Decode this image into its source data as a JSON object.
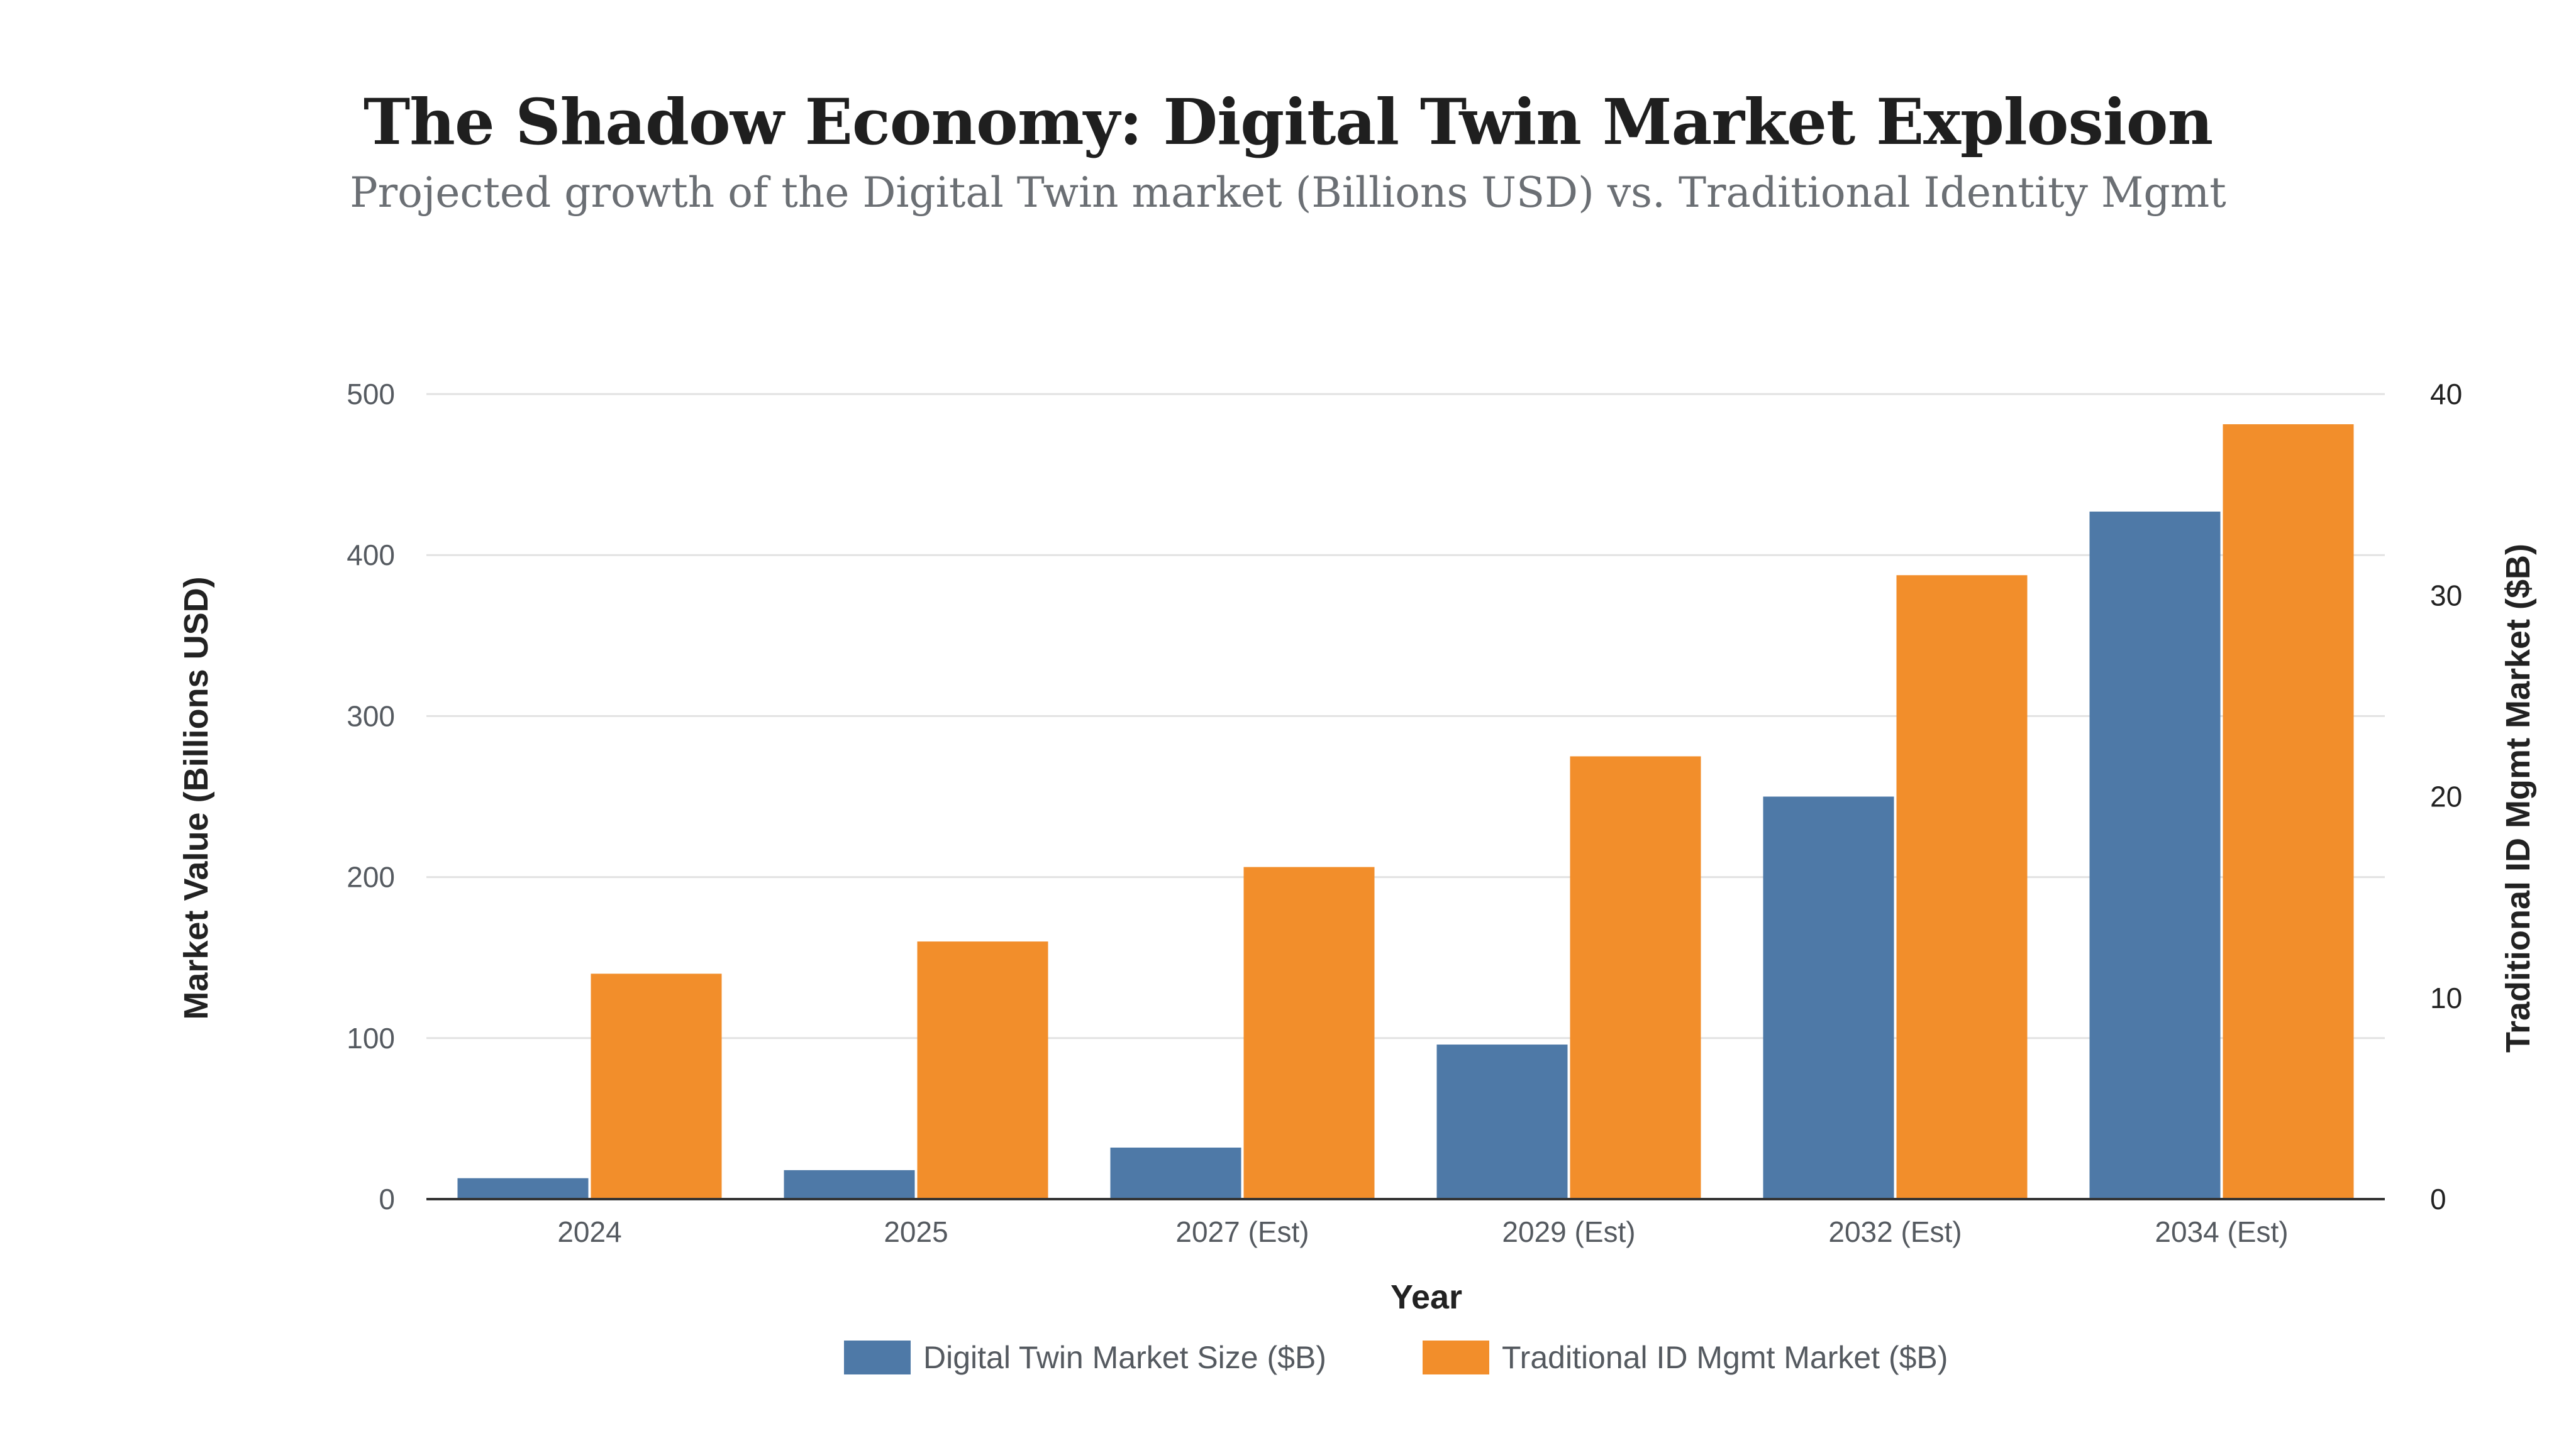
{
  "header": {
    "title": "The Shadow Economy: Digital Twin Market Explosion",
    "subtitle": "Projected growth of the Digital Twin market (Billions USD) vs. Traditional Identity Mgmt"
  },
  "colors": {
    "digital_twin": "#4e79a7",
    "traditional_id": "#f28e2b",
    "grid": "#e2e2e2",
    "axis": "#333333"
  },
  "chart_data": {
    "type": "bar",
    "categories": [
      "2024",
      "2025",
      "2027 (Est)",
      "2029 (Est)",
      "2032 (Est)",
      "2034 (Est)"
    ],
    "series": [
      {
        "name": "Digital Twin Market Size ($B)",
        "axis": "left",
        "values": [
          13,
          18,
          32,
          96,
          250,
          427
        ]
      },
      {
        "name": "Traditional ID Mgmt Market ($B)",
        "axis": "right",
        "values": [
          11.2,
          12.8,
          16.5,
          22,
          31,
          38.5
        ]
      }
    ],
    "xlabel": "Year",
    "ylabel": "Market Value (Billions USD)",
    "y2label": "Traditional ID Mgmt Market ($B)",
    "ylim": [
      0,
      500
    ],
    "y2lim": [
      0,
      40
    ],
    "yticks": [
      0,
      100,
      200,
      300,
      400,
      500
    ],
    "y2ticks": [
      0,
      10,
      20,
      30,
      40
    ],
    "grid": true,
    "legend_position": "bottom-center"
  }
}
